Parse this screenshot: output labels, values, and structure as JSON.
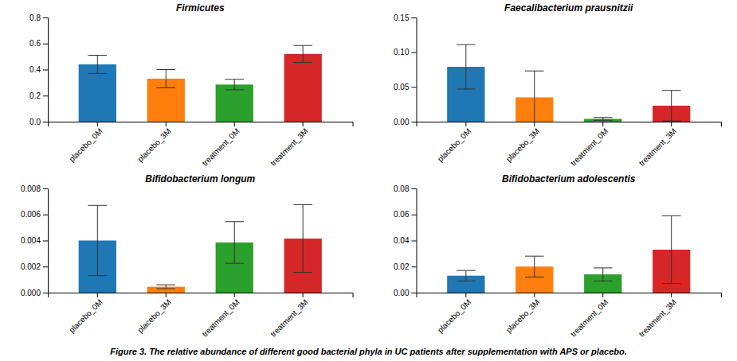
{
  "caption": "Figure 3. The relative abundance of different good bacterial phyla in UC patients after supplementation with APS or placebo.",
  "chart_data": [
    {
      "type": "bar",
      "title": "Firmicutes",
      "categories": [
        "placebo_0M",
        "placebo_3M",
        "treatment_0M",
        "treatment_3M"
      ],
      "values": [
        0.44,
        0.33,
        0.285,
        0.52
      ],
      "errors": [
        0.07,
        0.07,
        0.04,
        0.065
      ],
      "ylim": [
        0,
        0.8
      ],
      "yticks": [
        {
          "value": 0,
          "label": "0.0"
        },
        0.2,
        0.4,
        0.6,
        0.8
      ],
      "grid": false
    },
    {
      "type": "bar",
      "title": "Faecalibacterium prausnitzii",
      "categories": [
        "placebo_0M",
        "placebo_3M",
        "treatment_0M",
        "treatment_3M"
      ],
      "values": [
        0.079,
        0.035,
        0.004,
        0.023
      ],
      "errors": [
        0.032,
        0.038,
        0.002,
        0.022
      ],
      "ylim": [
        0,
        0.15
      ],
      "yticks": [
        {
          "value": 0,
          "label": "0.00"
        },
        0.05,
        {
          "value": 0.1,
          "label": "0.10"
        },
        0.15
      ],
      "grid": false
    },
    {
      "type": "bar",
      "title": "Bifidobacterium longum",
      "categories": [
        "placebo_0M",
        "placebo_3M",
        "treatment_0M",
        "treatment_3M"
      ],
      "values": [
        0.004,
        0.00045,
        0.00385,
        0.00415
      ],
      "errors": [
        0.0027,
        0.00015,
        0.0016,
        0.0026
      ],
      "ylim": [
        0,
        0.008
      ],
      "yticks": [
        {
          "value": 0,
          "label": "0.000"
        },
        0.002,
        0.004,
        0.006,
        0.008
      ],
      "grid": false
    },
    {
      "type": "bar",
      "title": "Bifidobacterium adolescentis",
      "categories": [
        "placebo_0M",
        "placebo_3M",
        "treatment_0M",
        "treatment_3M"
      ],
      "values": [
        0.013,
        0.02,
        0.014,
        0.033
      ],
      "errors": [
        0.004,
        0.008,
        0.005,
        0.026
      ],
      "ylim": [
        0,
        0.08
      ],
      "yticks": [
        {
          "value": 0,
          "label": "0.00"
        },
        0.02,
        0.04,
        0.06,
        0.08
      ],
      "grid": false
    }
  ]
}
